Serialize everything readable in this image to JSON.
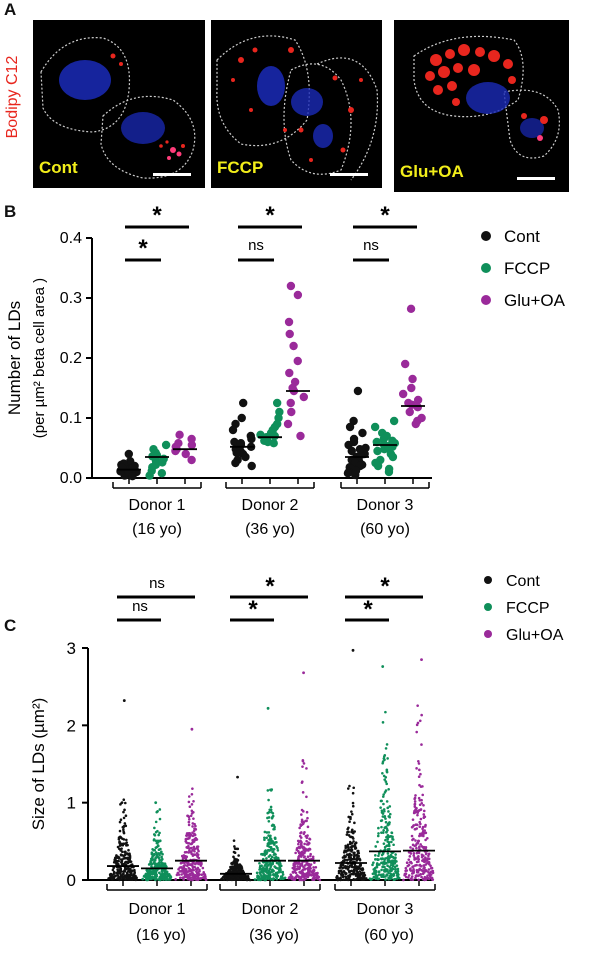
{
  "panel_a": {
    "letter": "A",
    "stain_label": "Bodipy C12",
    "images": [
      {
        "condition": "Cont"
      },
      {
        "condition": "FCCP"
      },
      {
        "condition": "Glu+OA"
      }
    ]
  },
  "colors": {
    "Cont": "#111111",
    "FCCP": "#0f8f5a",
    "Glu+OA": "#9a2a9a",
    "stain": "#e8261e",
    "image_label": "#f2ee1a"
  },
  "chart_data": [
    {
      "panel": "B",
      "type": "scatter",
      "ylabel_line1": "Number of LDs",
      "ylabel_line2": "(per µm² beta cell area )",
      "ylim": [
        0,
        0.4
      ],
      "yticks": [
        "0.0",
        "0.1",
        "0.2",
        "0.3",
        "0.4"
      ],
      "groups": [
        {
          "label_line1": "Donor 1",
          "label_line2": "(16 yo)"
        },
        {
          "label_line1": "Donor 2",
          "label_line2": "(36 yo)"
        },
        {
          "label_line1": "Donor 3",
          "label_line2": "(60 yo)"
        }
      ],
      "legend": [
        "Cont",
        "FCCP",
        "Glu+OA"
      ],
      "series": [
        {
          "name": "Cont",
          "medians": [
            0.014,
            0.052,
            0.035
          ],
          "points": [
            [
              0.04,
              0.028,
              0.022,
              0.018,
              0.016,
              0.014,
              0.012,
              0.01,
              0.008,
              0.006,
              0.004,
              0.02,
              0.015,
              0.011,
              0.009,
              0.024,
              0.003,
              0.017
            ],
            [
              0.125,
              0.1,
              0.09,
              0.08,
              0.07,
              0.065,
              0.06,
              0.055,
              0.052,
              0.048,
              0.045,
              0.04,
              0.035,
              0.03,
              0.025,
              0.02,
              0.058,
              0.042
            ],
            [
              0.145,
              0.095,
              0.085,
              0.075,
              0.065,
              0.06,
              0.055,
              0.05,
              0.045,
              0.04,
              0.035,
              0.03,
              0.028,
              0.025,
              0.022,
              0.02,
              0.018,
              0.015,
              0.012,
              0.01,
              0.008,
              0.005,
              0.038,
              0.048
            ]
          ]
        },
        {
          "name": "FCCP",
          "medians": [
            0.035,
            0.068,
            0.055
          ],
          "points": [
            [
              0.055,
              0.048,
              0.042,
              0.038,
              0.035,
              0.032,
              0.028,
              0.022,
              0.018,
              0.012,
              0.008,
              0.004,
              0.036,
              0.026
            ],
            [
              0.125,
              0.11,
              0.1,
              0.09,
              0.085,
              0.08,
              0.075,
              0.072,
              0.068,
              0.065,
              0.062,
              0.06,
              0.058,
              0.07,
              0.066
            ],
            [
              0.095,
              0.085,
              0.075,
              0.07,
              0.065,
              0.06,
              0.058,
              0.055,
              0.052,
              0.05,
              0.048,
              0.045,
              0.04,
              0.035,
              0.03,
              0.025,
              0.02,
              0.015,
              0.01,
              0.053,
              0.062
            ]
          ]
        },
        {
          "name": "Glu+OA",
          "medians": [
            0.048,
            0.145,
            0.12
          ],
          "points": [
            [
              0.072,
              0.065,
              0.058,
              0.052,
              0.048,
              0.045,
              0.04,
              0.03,
              0.055
            ],
            [
              0.32,
              0.305,
              0.26,
              0.22,
              0.195,
              0.175,
              0.16,
              0.15,
              0.145,
              0.135,
              0.125,
              0.11,
              0.09,
              0.07,
              0.24
            ],
            [
              0.282,
              0.19,
              0.165,
              0.15,
              0.14,
              0.13,
              0.122,
              0.118,
              0.11,
              0.1,
              0.095,
              0.09,
              0.125
            ]
          ]
        }
      ],
      "significance": [
        {
          "group": 0,
          "short": "*",
          "long": "*"
        },
        {
          "group": 1,
          "short": "ns",
          "long": "*"
        },
        {
          "group": 2,
          "short": "ns",
          "long": "*"
        }
      ]
    },
    {
      "panel": "C",
      "type": "scatter",
      "ylabel": "Size of LDs (µm²)",
      "ylim": [
        0,
        3
      ],
      "yticks": [
        "0",
        "1",
        "2",
        "3"
      ],
      "groups": [
        {
          "label_line1": "Donor 1",
          "label_line2": "(16 yo)"
        },
        {
          "label_line1": "Donor 2",
          "label_line2": "(36 yo)"
        },
        {
          "label_line1": "Donor 3",
          "label_line2": "(60 yo)"
        }
      ],
      "legend": [
        "Cont",
        "FCCP",
        "Glu+OA"
      ],
      "series": [
        {
          "name": "Cont",
          "medians": [
            0.18,
            0.08,
            0.22
          ],
          "max": [
            2.32,
            1.33,
            2.97
          ]
        },
        {
          "name": "FCCP",
          "medians": [
            0.15,
            0.25,
            0.37
          ],
          "max": [
            1.0,
            2.22,
            2.76
          ]
        },
        {
          "name": "Glu+OA",
          "medians": [
            0.25,
            0.25,
            0.38
          ],
          "max": [
            1.95,
            2.68,
            2.85
          ]
        }
      ],
      "significance": [
        {
          "group": 0,
          "short": "ns",
          "long": "ns"
        },
        {
          "group": 1,
          "short": "*",
          "long": "*"
        },
        {
          "group": 2,
          "short": "*",
          "long": "*"
        }
      ]
    }
  ]
}
